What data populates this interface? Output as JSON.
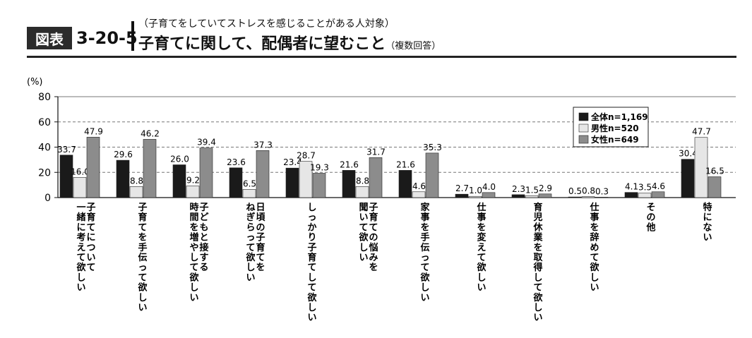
{
  "header": {
    "badge": "図表",
    "figure_number": "3-20-5",
    "subtitle": "（子育てをしていてストレスを感じることがある人対象）",
    "title": "子育てに関して、配偶者に望むこと",
    "title_note": "（複数回答）"
  },
  "chart_data": {
    "type": "bar",
    "ylabel": "(%)",
    "ylim": [
      0,
      80
    ],
    "yticks": [
      0,
      20,
      40,
      60,
      80
    ],
    "grid": "dashed horizontal at 20, 40, 60",
    "legend_position": "top-right",
    "categories": [
      "子育てについて一緒に考えて欲しい",
      "子育てを手伝って欲しい",
      "子どもと接する時間を増やして欲しい",
      "日頃の子育てをねぎらって欲しい",
      "しっかり子育てして欲しい",
      "子育ての悩みを聞いて欲しい",
      "家事を手伝って欲しい",
      "仕事を変えて欲しい",
      "育児休業を取得して欲しい",
      "仕事を辞めて欲しい",
      "その他",
      "特にない"
    ],
    "category_lines": [
      [
        "子育てについて",
        "一緒に考えて欲しい"
      ],
      [
        "子育てを手伝って欲しい"
      ],
      [
        "子どもと接する",
        "時間を増やして欲しい"
      ],
      [
        "日頃の子育てを",
        "ねぎらって欲しい"
      ],
      [
        "しっかり子育てして欲しい"
      ],
      [
        "子育ての悩みを",
        "聞いて欲しい"
      ],
      [
        "家事を手伝って欲しい"
      ],
      [
        "仕事を変えて欲しい"
      ],
      [
        "育児休業を取得して欲しい"
      ],
      [
        "仕事を辞めて欲しい"
      ],
      [
        "その他"
      ],
      [
        "特にない"
      ]
    ],
    "series": [
      {
        "name": "全体n=1,169",
        "color": "#1a1a1a",
        "values": [
          33.7,
          29.6,
          26.0,
          23.6,
          23.4,
          21.6,
          21.6,
          2.7,
          2.3,
          0.5,
          4.1,
          30.4
        ],
        "labels": [
          "33.7",
          "29.6",
          "26.0",
          "23.6",
          "23.4",
          "21.6",
          "21.6",
          "2.7",
          "2.3",
          "0.5",
          "4.1",
          "30.4"
        ]
      },
      {
        "name": "男性n=520",
        "color": "#e6e6e6",
        "values": [
          16.0,
          8.8,
          9.2,
          6.5,
          28.7,
          8.8,
          4.6,
          1.0,
          1.5,
          0.8,
          3.5,
          47.7
        ],
        "labels": [
          "16.0",
          "8.8",
          "9.2",
          "6.5",
          "28.7",
          "8.8",
          "4.6",
          "1.0",
          "1.5",
          "0.8",
          "3.5",
          "47.7"
        ]
      },
      {
        "name": "女性n=649",
        "color": "#8c8c8c",
        "values": [
          47.9,
          46.2,
          39.4,
          37.3,
          19.3,
          31.7,
          35.3,
          4.0,
          2.9,
          0.3,
          4.6,
          16.5
        ],
        "labels": [
          "47.9",
          "46.2",
          "39.4",
          "37.3",
          "19.3",
          "31.7",
          "35.3",
          "4.0",
          "2.9",
          "0.3",
          "4.6",
          "16.5"
        ]
      }
    ]
  }
}
